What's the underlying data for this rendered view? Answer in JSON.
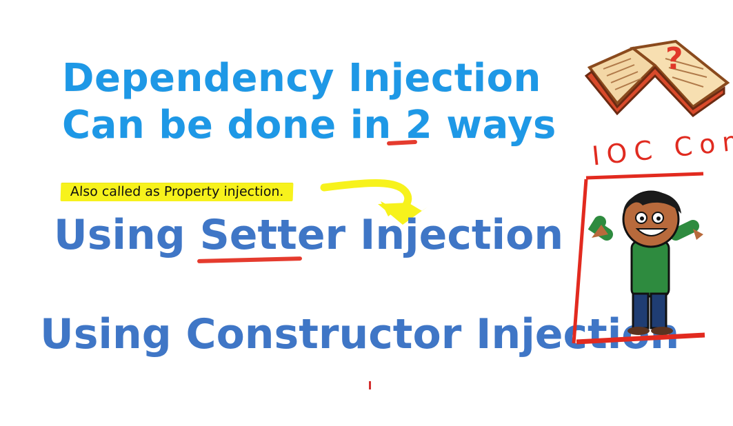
{
  "slide": {
    "title_line1": "Dependency Injection",
    "title_line2_before": "Can be done in ",
    "title_line2_num": "2",
    "title_line2_after": " ways",
    "note": "Also called as Property injection.",
    "method1_using": "Using ",
    "method1_emph": "Setter",
    "method1_rest": "  Injection",
    "method2": "Using Constructor Injection"
  },
  "sidebar": {
    "ioc_label": "IOC Con",
    "book_mark": "?"
  },
  "colors": {
    "title_blue": "#1e98e6",
    "method_blue": "#3f76c6",
    "underline_red": "#e53b2e",
    "highlight_yellow": "#f7f21c",
    "character_green": "#2e8b3f",
    "character_jeans": "#1f3d73",
    "character_skin": "#b86a3c",
    "book_red": "#d94a2b"
  },
  "icons": [
    "book-question-icon",
    "character-icon",
    "highlight-arrow-icon"
  ]
}
